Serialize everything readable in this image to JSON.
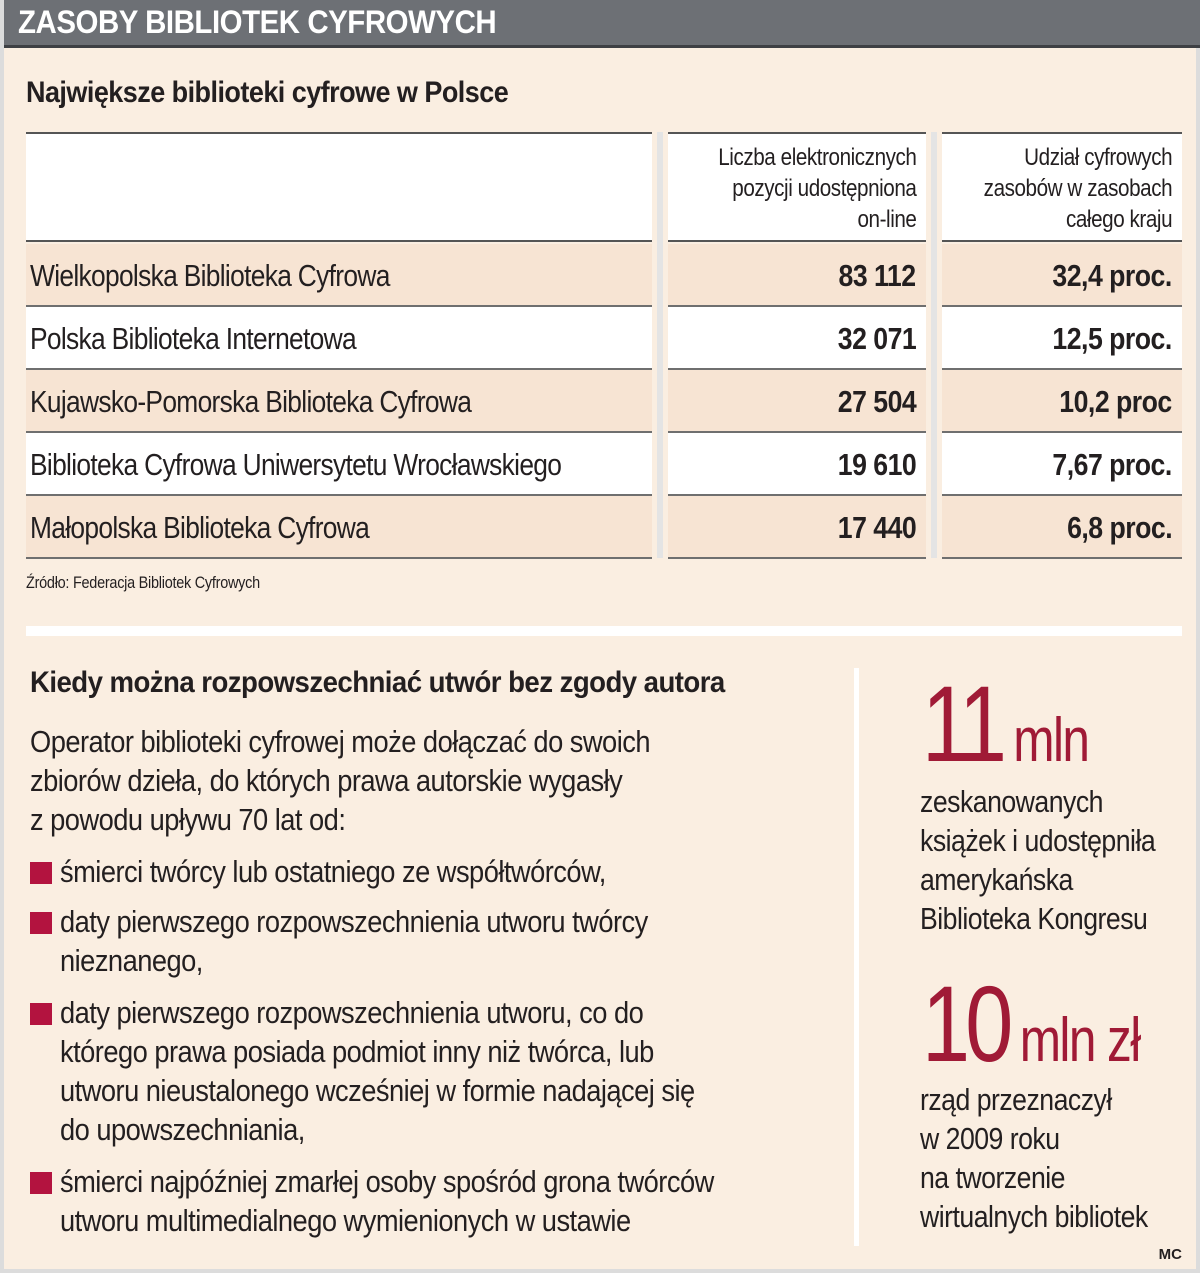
{
  "banner": {
    "title": "ZASOBY BIBLIOTEK CYFROWYCH"
  },
  "table_section": {
    "title": "Największe biblioteki cyfrowe w Polsce",
    "columns": [
      "",
      [
        "Liczba elektronicznych",
        "pozycji udostępniona",
        "on-line"
      ],
      [
        "Udział cyfrowych",
        "zasobów w zasobach",
        "całego kraju"
      ]
    ],
    "rows": [
      {
        "name": "Wielkopolska Biblioteka Cyfrowa",
        "count": "83 112",
        "share": "32,4 proc."
      },
      {
        "name": "Polska Biblioteka Internetowa",
        "count": "32 071",
        "share": "12,5 proc."
      },
      {
        "name": "Kujawsko-Pomorska Biblioteka Cyfrowa",
        "count": "27 504",
        "share": "10,2 proc"
      },
      {
        "name": "Biblioteka Cyfrowa Uniwersytetu Wrocławskiego",
        "count": "19 610",
        "share": "7,67 proc."
      },
      {
        "name": "Małopolska Biblioteka Cyfrowa",
        "count": "17 440",
        "share": "6,8 proc."
      }
    ],
    "source": "Źródło: Federacja Bibliotek Cyfrowych"
  },
  "rights_section": {
    "title": "Kiedy można rozpowszechniać utwór bez zgody autora",
    "intro": [
      "Operator biblioteki cyfrowej może dołączać do swoich",
      "zbiorów dzieła, do których prawa autorskie wygasły",
      "z powodu upływu 70 lat od:"
    ],
    "bullets": [
      [
        "śmierci twórcy lub ostatniego ze współtwórców,"
      ],
      [
        "daty pierwszego rozpowszechnienia utworu twórcy",
        "nieznanego,"
      ],
      [
        "daty pierwszego rozpowszechnienia utworu, co do",
        "którego prawa posiada podmiot inny niż twórca, lub",
        "utworu nieustalonego wcześniej w formie nadającej się",
        "do upowszechniania,"
      ],
      [
        "śmierci najpóźniej zmarłej osoby spośród grona twórców",
        "utworu multimedialnego wymienionych w ustawie"
      ]
    ],
    "bullet_color": "#b3133f"
  },
  "facts": [
    {
      "number": "11",
      "unit": "mln",
      "text": [
        "zeskanowanych",
        "książek i udostępniła",
        "amerykańska",
        "Biblioteka Kongresu"
      ]
    },
    {
      "number": "10",
      "unit": "mln zł",
      "text": [
        "rząd przeznaczył",
        "w 2009 roku",
        "na tworzenie",
        "wirtualnych bibliotek"
      ]
    }
  ],
  "accent_color": "#a01a36",
  "credit": "MC"
}
